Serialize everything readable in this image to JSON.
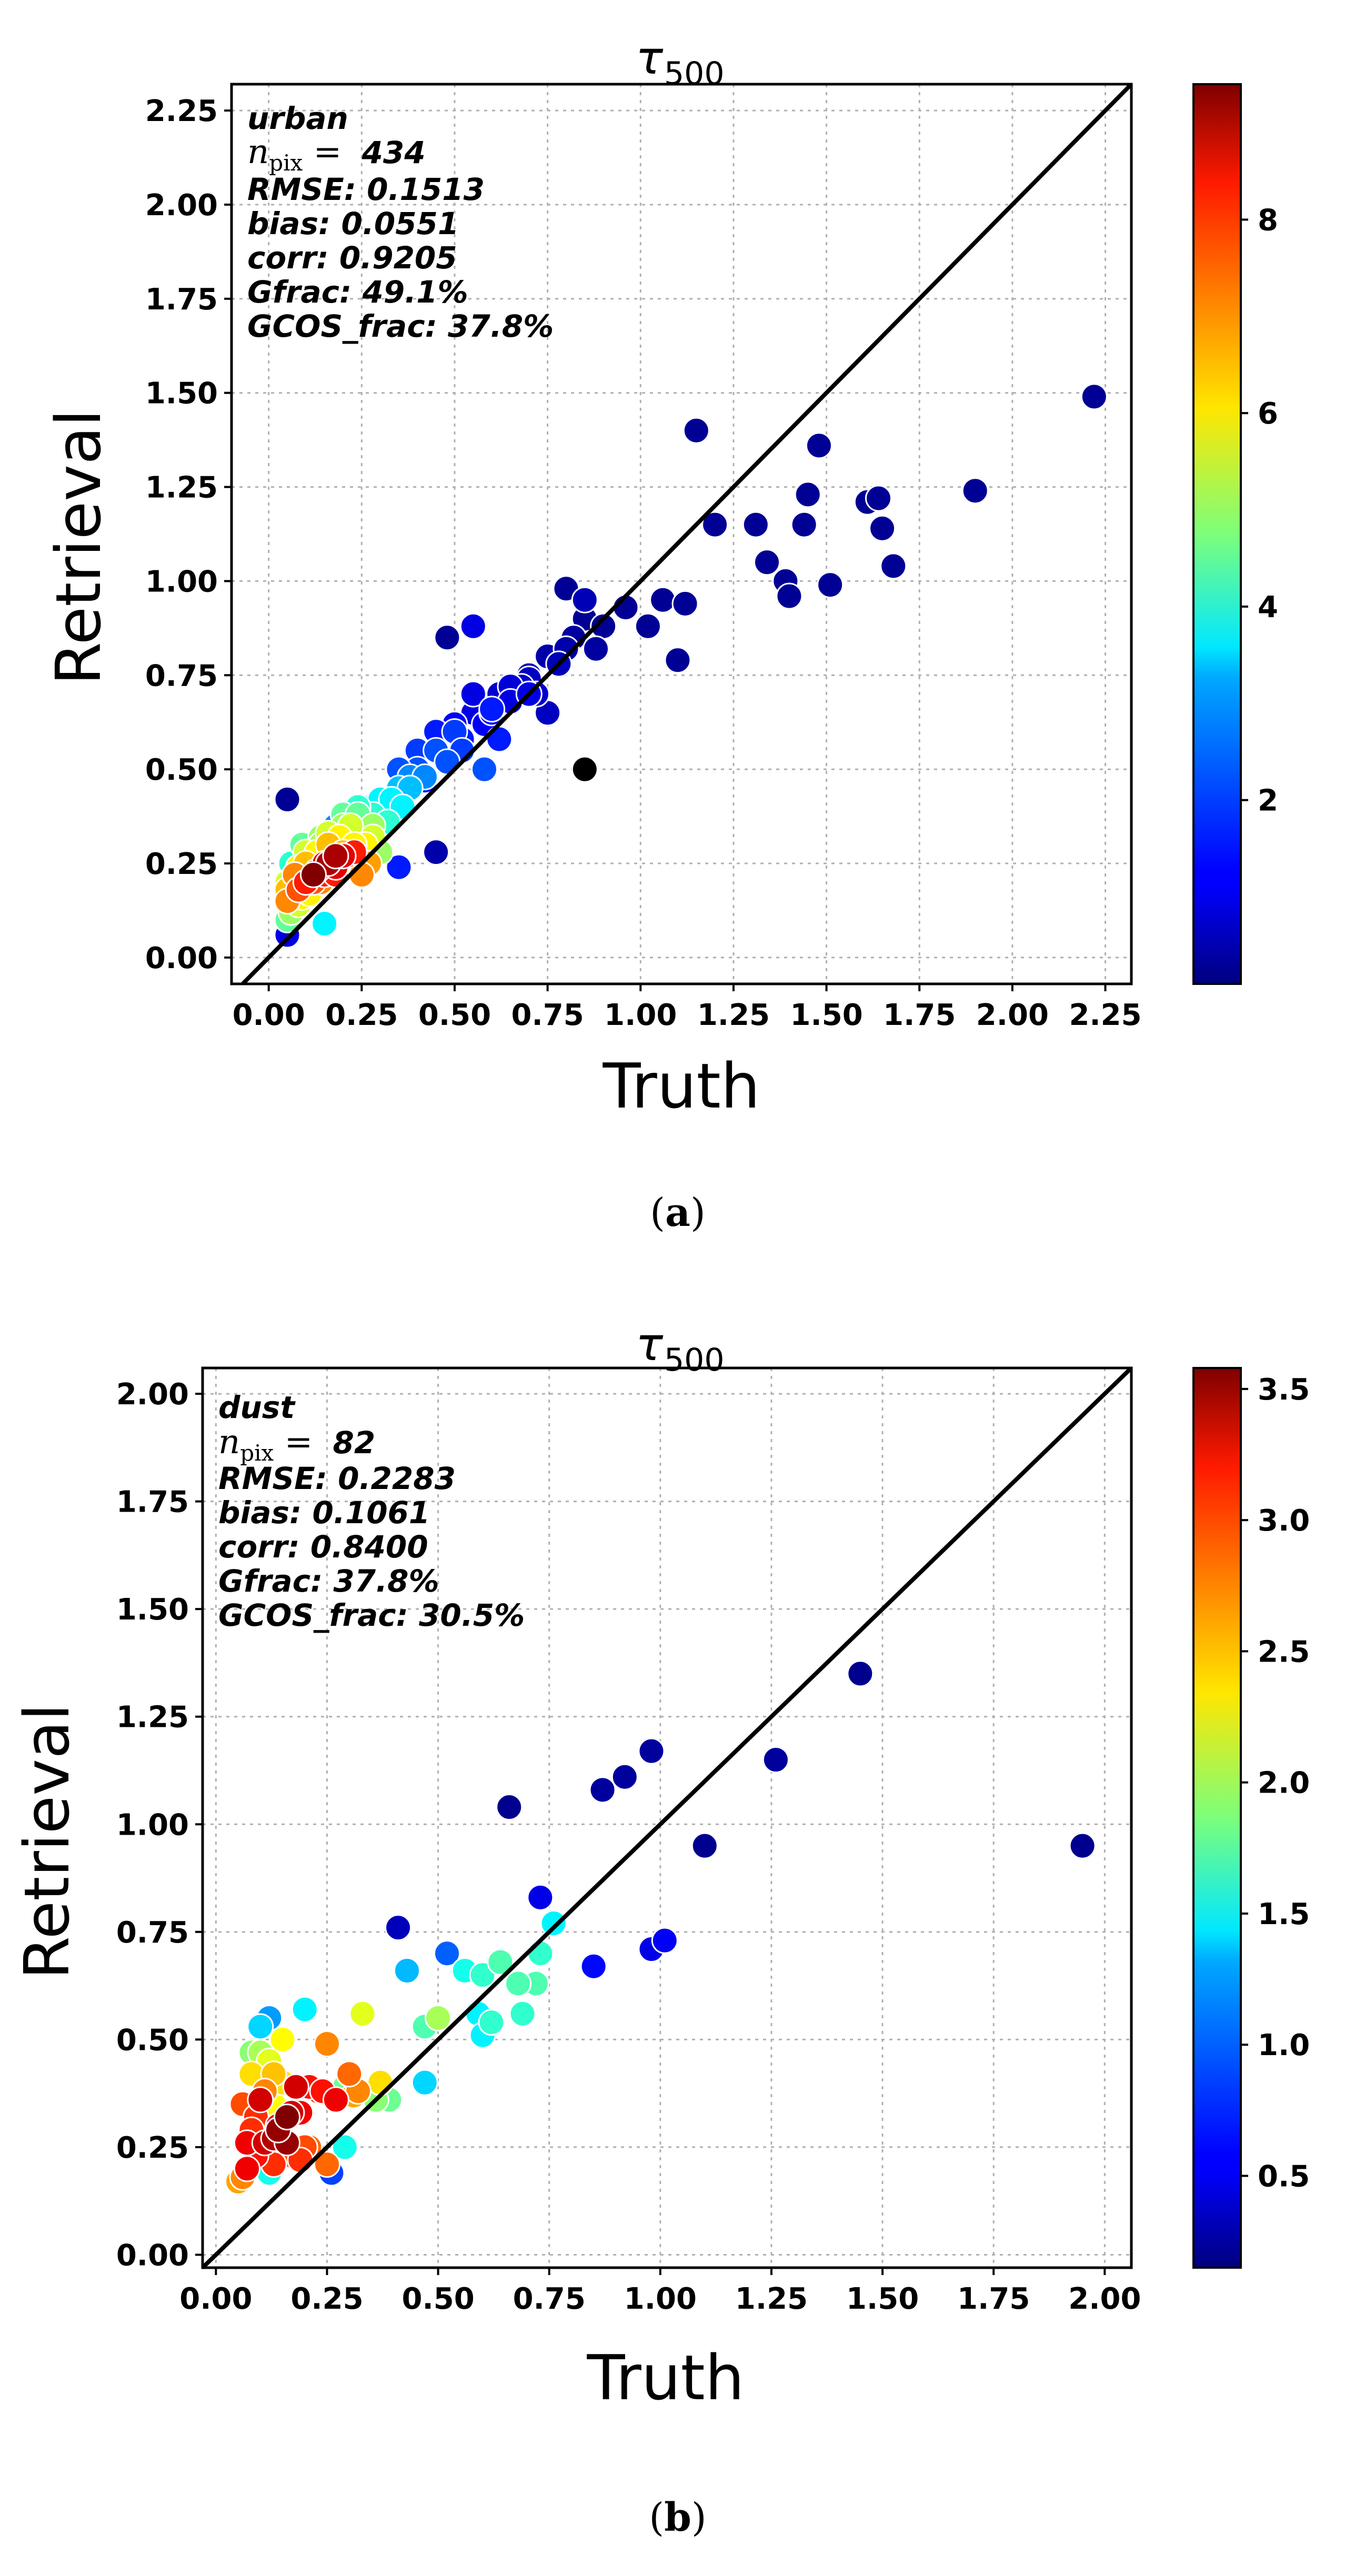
{
  "chart_data": [
    {
      "type": "scatter",
      "panel_label": "a",
      "title": "τ",
      "title_sub": "500",
      "xlabel": "Truth",
      "ylabel": "Retrieval",
      "xlim": [
        -0.1,
        2.32
      ],
      "ylim": [
        -0.07,
        2.32
      ],
      "xticks": [
        "0.00",
        "0.25",
        "0.50",
        "0.75",
        "1.00",
        "1.25",
        "1.50",
        "1.75",
        "2.00",
        "2.25"
      ],
      "yticks": [
        "0.00",
        "0.25",
        "0.50",
        "0.75",
        "1.00",
        "1.25",
        "1.50",
        "1.75",
        "2.00",
        "2.25"
      ],
      "grid": true,
      "one_to_one_line": true,
      "annotation": {
        "category": "urban",
        "npix_label": "n",
        "npix_sub": "pix",
        "npix_eq": " = ",
        "npix_value": "434",
        "rmse": "RMSE: 0.1513",
        "bias": "bias: 0.0551",
        "corr": "corr: 0.9205",
        "gfrac": "Gfrac: 49.1%",
        "gcos_frac": "GCOS_frac: 37.8%"
      },
      "colorbar": {
        "min": 0.1,
        "max": 9.4,
        "ticks": [
          "2",
          "4",
          "6",
          "8"
        ],
        "colormap": "jet"
      },
      "x": [
        0.05,
        0.07,
        0.1,
        0.12,
        0.15,
        0.18,
        0.2,
        0.22,
        0.25,
        0.28,
        0.3,
        0.32,
        0.35,
        0.38,
        0.4,
        0.42,
        0.45,
        0.48,
        0.5,
        0.52,
        0.55,
        0.58,
        0.6,
        0.62,
        0.65,
        0.68,
        0.7,
        0.72,
        0.75,
        0.78,
        0.8,
        0.82,
        0.85,
        0.88,
        0.9,
        0.12,
        0.18,
        0.25,
        0.3,
        0.35,
        0.4,
        0.45,
        0.5,
        0.55,
        0.6,
        0.65,
        0.7,
        0.06,
        0.09,
        0.14,
        0.2,
        0.24,
        0.28,
        0.33,
        0.38,
        0.42,
        0.48,
        0.52,
        0.58,
        0.62,
        0.05,
        0.08,
        0.1,
        0.14,
        0.16,
        0.2,
        0.24,
        0.28,
        0.32,
        0.36,
        0.05,
        0.07,
        0.1,
        0.13,
        0.16,
        0.19,
        0.22,
        0.26,
        0.3,
        0.05,
        0.08,
        0.11,
        0.14,
        0.17,
        0.2,
        0.23,
        0.27,
        0.06,
        0.09,
        0.12,
        0.15,
        0.18,
        0.21,
        0.25,
        0.05,
        0.08,
        0.11,
        0.14,
        0.18,
        0.1,
        0.13,
        0.16,
        0.2,
        0.23,
        0.12,
        0.15,
        0.18,
        0.45,
        0.35,
        0.15,
        0.05,
        0.96,
        1.02,
        1.06,
        1.1,
        1.12,
        1.15,
        1.2,
        1.31,
        1.34,
        1.39,
        1.4,
        1.44,
        1.45,
        1.48,
        1.51,
        1.61,
        1.64,
        1.65,
        1.68,
        1.9,
        2.22,
        0.8,
        0.85,
        0.75,
        0.7,
        0.55,
        0.48,
        0.85
      ],
      "y": [
        0.06,
        0.15,
        0.2,
        0.25,
        0.22,
        0.3,
        0.28,
        0.35,
        0.32,
        0.38,
        0.42,
        0.4,
        0.45,
        0.48,
        0.5,
        0.47,
        0.55,
        0.52,
        0.6,
        0.58,
        0.65,
        0.62,
        0.66,
        0.7,
        0.68,
        0.72,
        0.75,
        0.7,
        0.8,
        0.78,
        0.82,
        0.85,
        0.9,
        0.82,
        0.88,
        0.3,
        0.35,
        0.4,
        0.42,
        0.5,
        0.55,
        0.6,
        0.62,
        0.7,
        0.65,
        0.72,
        0.74,
        0.25,
        0.3,
        0.32,
        0.38,
        0.4,
        0.35,
        0.42,
        0.45,
        0.48,
        0.52,
        0.55,
        0.5,
        0.58,
        0.2,
        0.24,
        0.28,
        0.3,
        0.33,
        0.35,
        0.38,
        0.32,
        0.36,
        0.4,
        0.18,
        0.22,
        0.25,
        0.28,
        0.3,
        0.32,
        0.35,
        0.3,
        0.28,
        0.15,
        0.18,
        0.2,
        0.23,
        0.25,
        0.28,
        0.3,
        0.25,
        0.12,
        0.16,
        0.2,
        0.22,
        0.24,
        0.27,
        0.22,
        0.1,
        0.14,
        0.17,
        0.2,
        0.22,
        0.2,
        0.23,
        0.25,
        0.27,
        0.28,
        0.22,
        0.25,
        0.27,
        0.28,
        0.24,
        0.09,
        0.42,
        0.93,
        0.88,
        0.95,
        0.79,
        0.94,
        1.4,
        1.15,
        1.15,
        1.05,
        1.0,
        0.96,
        1.15,
        1.23,
        1.36,
        0.99,
        1.21,
        1.22,
        1.14,
        1.04,
        1.24,
        1.49,
        0.98,
        0.95,
        0.65,
        0.7,
        0.88,
        0.85,
        0.5
      ],
      "c": [
        1.0,
        1.5,
        2.5,
        3.5,
        2.0,
        4.0,
        3.0,
        4.5,
        3.0,
        4.0,
        3.5,
        2.0,
        3.0,
        2.5,
        2.0,
        1.5,
        2.0,
        1.2,
        1.8,
        1.5,
        1.0,
        1.2,
        1.5,
        0.8,
        1.0,
        0.8,
        0.6,
        0.8,
        0.5,
        0.6,
        0.5,
        0.4,
        0.3,
        0.4,
        0.3,
        2.0,
        2.5,
        3.0,
        2.8,
        2.0,
        1.8,
        1.5,
        1.2,
        1.0,
        1.2,
        0.9,
        0.7,
        4.0,
        4.5,
        5.0,
        4.5,
        4.0,
        5.0,
        3.5,
        3.0,
        2.5,
        2.0,
        1.8,
        2.0,
        1.5,
        5.5,
        6.0,
        5.5,
        5.0,
        5.5,
        5.0,
        4.5,
        5.5,
        4.0,
        3.5,
        6.5,
        7.0,
        6.5,
        6.0,
        6.5,
        6.0,
        5.5,
        6.0,
        5.0,
        7.0,
        7.5,
        7.0,
        6.5,
        7.0,
        6.5,
        6.0,
        6.8,
        5.0,
        6.0,
        7.5,
        8.0,
        8.5,
        7.5,
        7.0,
        4.5,
        5.5,
        6.0,
        7.0,
        8.0,
        8.0,
        8.5,
        9.0,
        8.5,
        8.0,
        9.4,
        8.5,
        9.0,
        0.5,
        1.5,
        3.5,
        0.3,
        0.3,
        0.3,
        0.3,
        0.3,
        0.3,
        0.3,
        0.3,
        0.3,
        0.3,
        0.3,
        0.3,
        0.3,
        0.3,
        0.3,
        0.3,
        0.3,
        0.3,
        0.3,
        0.3,
        0.3,
        0.3,
        0.3,
        0.6,
        0.7,
        1.0,
        1.0,
        0.3
      ]
    },
    {
      "type": "scatter",
      "panel_label": "b",
      "title": "τ",
      "title_sub": "500",
      "xlabel": "Truth",
      "ylabel": "Retrieval",
      "xlim": [
        -0.03,
        2.06
      ],
      "ylim": [
        -0.03,
        2.06
      ],
      "xticks": [
        "0.00",
        "0.25",
        "0.50",
        "0.75",
        "1.00",
        "1.25",
        "1.50",
        "1.75",
        "2.00"
      ],
      "yticks": [
        "0.00",
        "0.25",
        "0.50",
        "0.75",
        "1.00",
        "1.25",
        "1.50",
        "1.75",
        "2.00"
      ],
      "grid": true,
      "one_to_one_line": true,
      "annotation": {
        "category": "dust",
        "npix_label": "n",
        "npix_sub": "pix",
        "npix_eq": " = ",
        "npix_value": "82",
        "rmse": "RMSE: 0.2283",
        "bias": "bias: 0.1061",
        "corr": "corr: 0.8400",
        "gfrac": "Gfrac: 37.8%",
        "gcos_frac": "GCOS_frac: 30.5%"
      },
      "colorbar": {
        "min": 0.15,
        "max": 3.58,
        "ticks": [
          "0.5",
          "1.0",
          "1.5",
          "2.0",
          "2.5",
          "3.0",
          "3.5"
        ],
        "colormap": "jet"
      },
      "x": [
        1.45,
        1.26,
        0.98,
        0.92,
        0.87,
        0.66,
        1.95,
        1.1,
        0.73,
        0.85,
        0.98,
        1.01,
        0.41,
        0.52,
        0.56,
        0.6,
        0.64,
        0.73,
        0.62,
        0.72,
        0.68,
        0.69,
        0.59,
        0.6,
        0.76,
        0.47,
        0.5,
        0.43,
        0.39,
        0.36,
        0.33,
        0.29,
        0.37,
        0.29,
        0.26,
        0.25,
        0.2,
        0.21,
        0.15,
        0.13,
        0.12,
        0.1,
        0.08,
        0.05,
        0.07,
        0.09,
        0.11,
        0.13,
        0.15,
        0.17,
        0.19,
        0.16,
        0.12,
        0.1,
        0.08,
        0.14,
        0.18,
        0.21,
        0.23,
        0.3,
        0.31,
        0.32,
        0.25,
        0.06,
        0.14,
        0.17,
        0.13,
        0.11,
        0.09,
        0.07,
        0.15,
        0.16,
        0.12,
        0.19,
        0.1,
        0.08,
        0.06,
        0.13,
        0.2,
        0.24,
        0.27,
        0.47
      ],
      "y": [
        1.35,
        1.15,
        1.17,
        1.11,
        1.08,
        1.04,
        0.95,
        0.95,
        0.83,
        0.67,
        0.71,
        0.73,
        0.76,
        0.7,
        0.66,
        0.65,
        0.68,
        0.7,
        0.54,
        0.63,
        0.63,
        0.56,
        0.56,
        0.51,
        0.77,
        0.53,
        0.55,
        0.66,
        0.36,
        0.36,
        0.56,
        0.39,
        0.4,
        0.25,
        0.19,
        0.49,
        0.57,
        0.25,
        0.23,
        0.21,
        0.19,
        0.47,
        0.47,
        0.17,
        0.26,
        0.32,
        0.38,
        0.42,
        0.4,
        0.33,
        0.33,
        0.26,
        0.55,
        0.53,
        0.42,
        0.29,
        0.39,
        0.39,
        0.38,
        0.42,
        0.37,
        0.38,
        0.21,
        0.18,
        0.3,
        0.23,
        0.27,
        0.26,
        0.23,
        0.2,
        0.5,
        0.32,
        0.45,
        0.22,
        0.36,
        0.29,
        0.35,
        0.35,
        0.25,
        0.38,
        0.36,
        0.4
      ],
      "c": [
        0.2,
        0.25,
        0.25,
        0.25,
        0.25,
        0.2,
        0.2,
        0.2,
        0.5,
        0.6,
        0.5,
        0.55,
        0.35,
        0.9,
        1.5,
        1.6,
        1.7,
        1.6,
        1.6,
        1.7,
        1.7,
        1.6,
        1.4,
        1.4,
        1.4,
        1.7,
        2.0,
        1.2,
        1.8,
        1.9,
        2.2,
        1.8,
        2.4,
        1.5,
        0.8,
        2.7,
        1.4,
        2.8,
        2.0,
        3.0,
        1.5,
        2.0,
        1.9,
        2.6,
        3.2,
        3.0,
        2.7,
        2.5,
        2.4,
        3.3,
        3.2,
        3.5,
        1.1,
        1.3,
        2.4,
        3.5,
        3.3,
        3.1,
        3.0,
        2.8,
        2.6,
        2.7,
        2.8,
        2.7,
        3.2,
        2.9,
        3.4,
        3.3,
        3.1,
        3.2,
        2.3,
        3.6,
        2.2,
        3.0,
        3.3,
        3.0,
        2.9,
        2.3,
        2.9,
        3.1,
        3.2,
        1.3
      ]
    }
  ],
  "panel_captions": [
    "(",
    "a",
    ")",
    "(",
    "b",
    ")"
  ]
}
